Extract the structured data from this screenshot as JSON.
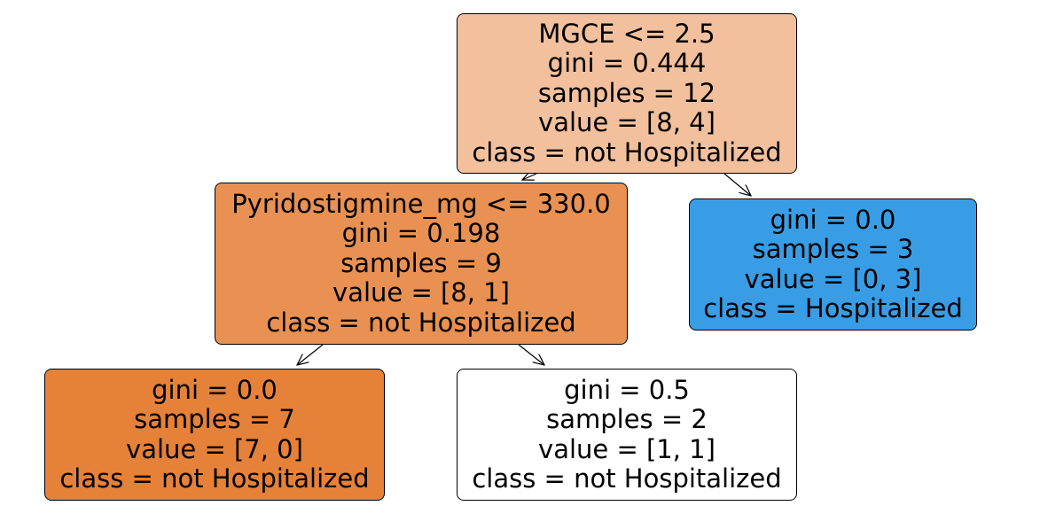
{
  "tree": {
    "nodes": [
      {
        "id": "node-0",
        "split": "MGCE <= 2.5",
        "gini": "gini = 0.444",
        "samples": "samples = 12",
        "value": "value = [8, 4]",
        "class": "class = not Hospitalized",
        "fill": "#f2c09c"
      },
      {
        "id": "node-1",
        "split": "Pyridostigmine_mg <= 330.0",
        "gini": "gini = 0.198",
        "samples": "samples = 9",
        "value": "value = [8, 1]",
        "class": "class = not Hospitalized",
        "fill": "#e89152"
      },
      {
        "id": "node-2",
        "gini": "gini = 0.0",
        "samples": "samples = 7",
        "value": "value = [7, 0]",
        "class": "class = not Hospitalized",
        "fill": "#e58139"
      },
      {
        "id": "node-3",
        "gini": "gini = 0.5",
        "samples": "samples = 2",
        "value": "value = [1, 1]",
        "class": "class = not Hospitalized",
        "fill": "#ffffff"
      },
      {
        "id": "node-4",
        "gini": "gini = 0.0",
        "samples": "samples = 3",
        "value": "value = [0, 3]",
        "class": "class = Hospitalized",
        "fill": "#399de5"
      }
    ],
    "edges": [
      {
        "from": "node-0",
        "to": "node-1"
      },
      {
        "from": "node-0",
        "to": "node-4"
      },
      {
        "from": "node-1",
        "to": "node-2"
      },
      {
        "from": "node-1",
        "to": "node-3"
      }
    ]
  }
}
